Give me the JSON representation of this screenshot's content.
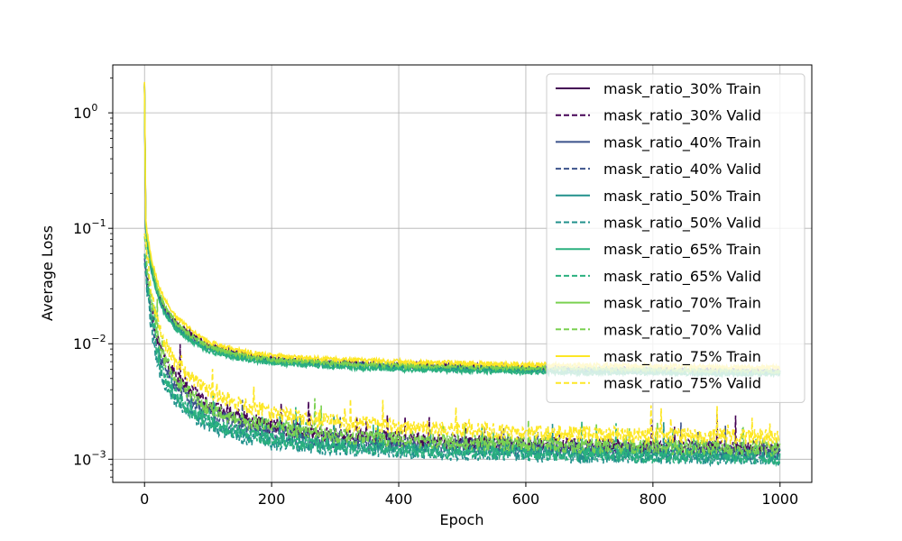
{
  "chart_data": {
    "type": "line",
    "title": "",
    "xlabel": "Epoch",
    "ylabel": "Average Loss",
    "xlim": [
      -50,
      1050
    ],
    "ylim": [
      0.00063,
      2.6
    ],
    "yscale": "log",
    "grid": true,
    "legend_position": "top-right",
    "x_ticks": [
      0,
      200,
      400,
      600,
      800,
      1000
    ],
    "x_tick_labels": [
      "0",
      "200",
      "400",
      "600",
      "800",
      "1000"
    ],
    "y_ticks": [
      0.001,
      0.01,
      0.1,
      1
    ],
    "y_tick_labels": [
      "10",
      "10",
      "10",
      "10"
    ],
    "y_tick_exponents": [
      "−3",
      "−2",
      "−1",
      "0"
    ],
    "x": [
      0,
      2,
      5,
      10,
      20,
      30,
      50,
      75,
      100,
      150,
      200,
      300,
      400,
      500,
      600,
      700,
      800,
      900,
      1000
    ],
    "series": [
      {
        "name": "mask_ratio_30% Train",
        "color": "#440154",
        "dash": "solid",
        "values": [
          1.8,
          0.11,
          0.075,
          0.05,
          0.03,
          0.021,
          0.015,
          0.012,
          0.0098,
          0.0082,
          0.0074,
          0.0069,
          0.0066,
          0.0064,
          0.0062,
          0.0061,
          0.006,
          0.0059,
          0.0058
        ]
      },
      {
        "name": "mask_ratio_30% Valid",
        "color": "#440154",
        "dash": "dashed",
        "values": [
          0.06,
          0.05,
          0.035,
          0.02,
          0.011,
          0.0075,
          0.0052,
          0.0039,
          0.003,
          0.0023,
          0.0019,
          0.0016,
          0.0015,
          0.0014,
          0.00135,
          0.0013,
          0.00128,
          0.00125,
          0.00122
        ]
      },
      {
        "name": "mask_ratio_40% Train",
        "color": "#3b528b",
        "dash": "solid",
        "values": [
          1.7,
          0.1,
          0.07,
          0.047,
          0.028,
          0.02,
          0.014,
          0.0112,
          0.0093,
          0.0079,
          0.0072,
          0.0067,
          0.0064,
          0.0062,
          0.0061,
          0.006,
          0.0059,
          0.0058,
          0.0057
        ]
      },
      {
        "name": "mask_ratio_40% Valid",
        "color": "#3b528b",
        "dash": "dashed",
        "values": [
          0.055,
          0.045,
          0.03,
          0.017,
          0.0092,
          0.0062,
          0.0042,
          0.0031,
          0.0025,
          0.002,
          0.0017,
          0.00145,
          0.00135,
          0.0013,
          0.00125,
          0.0012,
          0.00118,
          0.00116,
          0.00114
        ]
      },
      {
        "name": "mask_ratio_50% Train",
        "color": "#21918c",
        "dash": "solid",
        "values": [
          1.7,
          0.1,
          0.068,
          0.045,
          0.027,
          0.019,
          0.0135,
          0.0108,
          0.009,
          0.0077,
          0.007,
          0.0065,
          0.0062,
          0.006,
          0.0059,
          0.0058,
          0.0057,
          0.0056,
          0.0056
        ]
      },
      {
        "name": "mask_ratio_50% Valid",
        "color": "#21918c",
        "dash": "dashed",
        "values": [
          0.05,
          0.04,
          0.026,
          0.014,
          0.0072,
          0.0048,
          0.0032,
          0.0024,
          0.002,
          0.0016,
          0.0014,
          0.00125,
          0.00118,
          0.00113,
          0.0011,
          0.00107,
          0.00105,
          0.00104,
          0.00103
        ]
      },
      {
        "name": "mask_ratio_65% Train",
        "color": "#2ab07f",
        "dash": "solid",
        "values": [
          1.75,
          0.1,
          0.07,
          0.046,
          0.027,
          0.019,
          0.0132,
          0.0104,
          0.0087,
          0.0074,
          0.0068,
          0.0063,
          0.006,
          0.0058,
          0.0057,
          0.0056,
          0.0056,
          0.0055,
          0.0055
        ]
      },
      {
        "name": "mask_ratio_65% Valid",
        "color": "#2ab07f",
        "dash": "dashed",
        "values": [
          0.06,
          0.05,
          0.033,
          0.018,
          0.0085,
          0.0052,
          0.0034,
          0.0026,
          0.0021,
          0.0017,
          0.0015,
          0.0013,
          0.00122,
          0.00117,
          0.00113,
          0.0011,
          0.00108,
          0.00106,
          0.00105
        ]
      },
      {
        "name": "mask_ratio_70% Train",
        "color": "#7ad151",
        "dash": "solid",
        "values": [
          1.8,
          0.11,
          0.078,
          0.052,
          0.031,
          0.022,
          0.015,
          0.0115,
          0.0095,
          0.008,
          0.0073,
          0.0068,
          0.0065,
          0.0063,
          0.0062,
          0.0061,
          0.006,
          0.0059,
          0.0058
        ]
      },
      {
        "name": "mask_ratio_70% Valid",
        "color": "#7ad151",
        "dash": "dashed",
        "values": [
          0.085,
          0.07,
          0.045,
          0.025,
          0.012,
          0.0075,
          0.0048,
          0.0035,
          0.0028,
          0.0022,
          0.0019,
          0.0016,
          0.00148,
          0.0014,
          0.00135,
          0.0013,
          0.00128,
          0.00126,
          0.00125
        ]
      },
      {
        "name": "mask_ratio_75% Train",
        "color": "#fde725",
        "dash": "solid",
        "values": [
          1.85,
          0.12,
          0.085,
          0.058,
          0.035,
          0.025,
          0.017,
          0.0128,
          0.0104,
          0.0087,
          0.0079,
          0.0073,
          0.007,
          0.0068,
          0.0066,
          0.0065,
          0.0064,
          0.0063,
          0.0062
        ]
      },
      {
        "name": "mask_ratio_75% Valid",
        "color": "#fde725",
        "dash": "dashed",
        "values": [
          0.09,
          0.08,
          0.055,
          0.032,
          0.016,
          0.0105,
          0.0068,
          0.005,
          0.0039,
          0.003,
          0.0025,
          0.0021,
          0.0019,
          0.0018,
          0.0017,
          0.00165,
          0.0016,
          0.00158,
          0.00156
        ]
      }
    ]
  }
}
